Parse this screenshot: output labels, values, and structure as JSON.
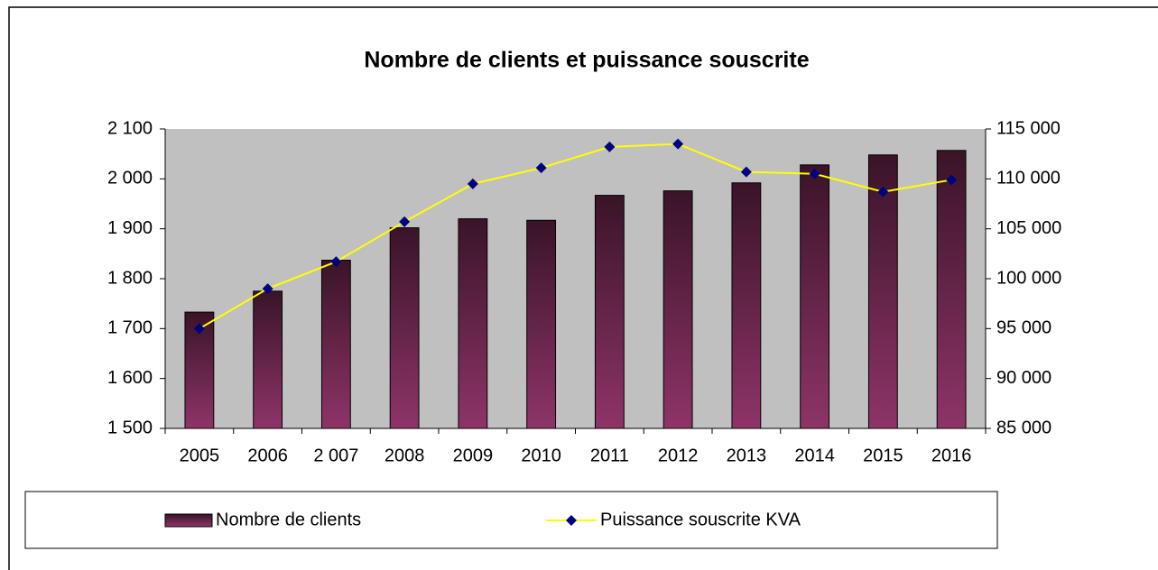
{
  "chart_data": {
    "type": "bar_line",
    "title": "Nombre de clients et puissance souscrite",
    "categories": [
      "2005",
      "2006",
      "2 007",
      "2008",
      "2009",
      "2010",
      "2011",
      "2012",
      "2013",
      "2014",
      "2015",
      "2016"
    ],
    "series": [
      {
        "name": "Nombre de clients",
        "type": "bar",
        "color": "#8e3468",
        "values": [
          1733,
          1775,
          1837,
          1902,
          1920,
          1917,
          1967,
          1976,
          1992,
          2028,
          2048,
          2057
        ]
      },
      {
        "name": "Puissance souscrite KVA",
        "type": "line",
        "axis": "y2",
        "color": "#ffff00",
        "marker_color": "#000080",
        "values": [
          95000,
          99000,
          101700,
          105700,
          109500,
          111100,
          113200,
          113500,
          110700,
          110500,
          108700,
          109900
        ]
      }
    ],
    "ylim": [
      1500,
      2100
    ],
    "yticks": [
      {
        "value": 1500,
        "label": "1 500"
      },
      {
        "value": 1600,
        "label": "1 600"
      },
      {
        "value": 1700,
        "label": "1 700"
      },
      {
        "value": 1800,
        "label": "1 800"
      },
      {
        "value": 1900,
        "label": "1 900"
      },
      {
        "value": 2000,
        "label": "2 000"
      },
      {
        "value": 2100,
        "label": "2 100"
      }
    ],
    "y2lim": [
      85000,
      115000
    ],
    "y2ticks": [
      {
        "value": 85000,
        "label": "85 000"
      },
      {
        "value": 90000,
        "label": "90 000"
      },
      {
        "value": 95000,
        "label": "95 000"
      },
      {
        "value": 100000,
        "label": "100 000"
      },
      {
        "value": 105000,
        "label": "105 000"
      },
      {
        "value": 110000,
        "label": "110 000"
      },
      {
        "value": 115000,
        "label": "115 000"
      }
    ],
    "grid": false,
    "legend": "bottom"
  }
}
